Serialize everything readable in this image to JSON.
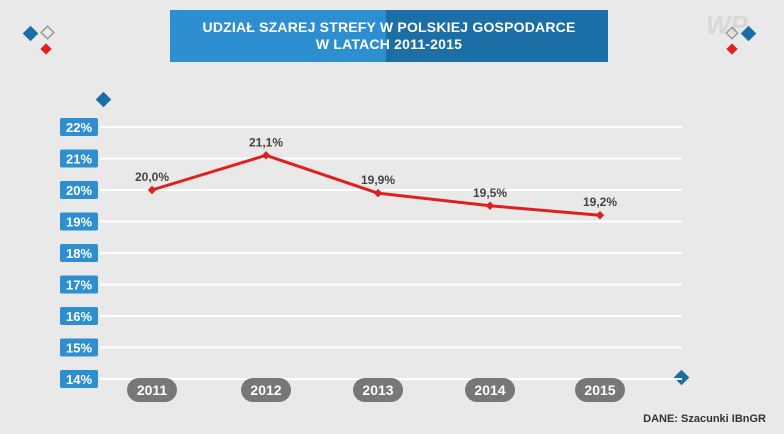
{
  "header": {
    "title_line1": "UDZIAŁ SZAREJ STREFY W POLSKIEJ GOSPODARCE",
    "title_line2": "W LATACH 2011-2015"
  },
  "logo_text": "WP",
  "source": "DANE: Szacunki IBnGR",
  "colors": {
    "line": "#e02020",
    "tick_badge": "#2d8fcf",
    "year_badge": "#777777",
    "grid": "#ffffff",
    "banner_dark": "#1b6fa6",
    "banner_light": "#2d8fcf"
  },
  "chart_data": {
    "type": "line",
    "categories": [
      "2011",
      "2012",
      "2013",
      "2014",
      "2015"
    ],
    "values": [
      20.0,
      21.1,
      19.9,
      19.5,
      19.2
    ],
    "value_labels": [
      "20,0%",
      "21,1%",
      "19,9%",
      "19,5%",
      "19,2%"
    ],
    "ylim": [
      14,
      22
    ],
    "y_ticks": [
      "14%",
      "15%",
      "16%",
      "17%",
      "18%",
      "19%",
      "20%",
      "21%",
      "22%"
    ],
    "grid": true
  }
}
